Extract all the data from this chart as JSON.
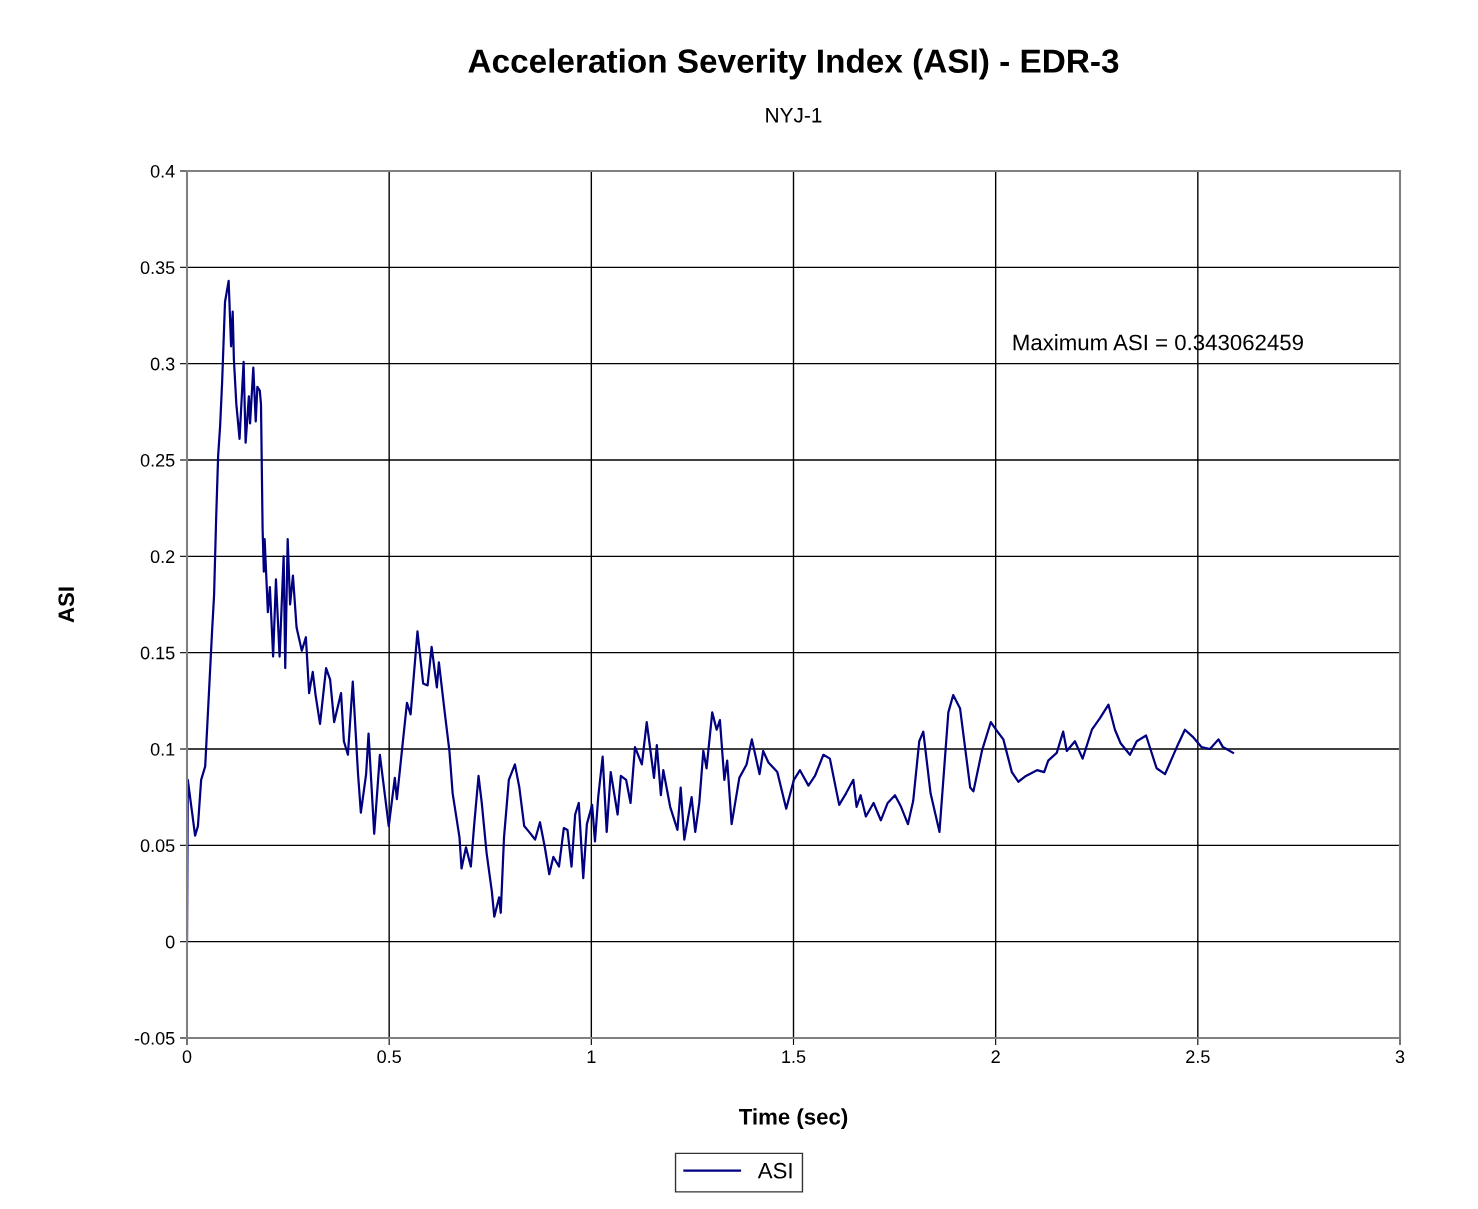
{
  "chart_data": {
    "type": "line",
    "title": "Acceleration Severity Index (ASI) - EDR-3",
    "subtitle": "NYJ-1",
    "xlabel": "Time (sec)",
    "ylabel": "ASI",
    "annotations": [
      "Maximum ASI = 0.343062459"
    ],
    "xlim": [
      0,
      3
    ],
    "xticks": [
      0,
      0.5,
      1,
      1.5,
      2,
      2.5,
      3
    ],
    "ylim": [
      -0.05,
      0.4
    ],
    "yticks": [
      -0.05,
      0,
      0.05,
      0.1,
      0.15,
      0.2,
      0.25,
      0.3,
      0.35,
      0.4
    ],
    "grid": true,
    "legend": "bottom",
    "marker": "none",
    "line_style": "solid",
    "series": [
      {
        "name": "ASI",
        "color": "#000080",
        "x": [
          0,
          0.002,
          0.012,
          0.02,
          0.027,
          0.035,
          0.045,
          0.054,
          0.062,
          0.067,
          0.072,
          0.077,
          0.082,
          0.087,
          0.094,
          0.103,
          0.109,
          0.113,
          0.116,
          0.122,
          0.13,
          0.14,
          0.145,
          0.153,
          0.156,
          0.164,
          0.17,
          0.174,
          0.18,
          0.183,
          0.187,
          0.19,
          0.192,
          0.2,
          0.205,
          0.213,
          0.22,
          0.229,
          0.239,
          0.243,
          0.249,
          0.255,
          0.262,
          0.271,
          0.284,
          0.294,
          0.302,
          0.311,
          0.318,
          0.329,
          0.344,
          0.354,
          0.364,
          0.381,
          0.388,
          0.398,
          0.41,
          0.423,
          0.43,
          0.443,
          0.449,
          0.463,
          0.477,
          0.499,
          0.514,
          0.519,
          0.533,
          0.544,
          0.553,
          0.57,
          0.584,
          0.595,
          0.605,
          0.618,
          0.623,
          0.638,
          0.649,
          0.657,
          0.674,
          0.679,
          0.69,
          0.702,
          0.71,
          0.721,
          0.729,
          0.741,
          0.754,
          0.76,
          0.772,
          0.776,
          0.784,
          0.796,
          0.811,
          0.822,
          0.834,
          0.846,
          0.861,
          0.873,
          0.885,
          0.896,
          0.906,
          0.92,
          0.932,
          0.941,
          0.951,
          0.96,
          0.969,
          0.98,
          0.989,
          1.002,
          1.009,
          1.017,
          1.028,
          1.038,
          1.048,
          1.065,
          1.073,
          1.086,
          1.097,
          1.108,
          1.125,
          1.137,
          1.155,
          1.162,
          1.172,
          1.178,
          1.195,
          1.213,
          1.221,
          1.23,
          1.248,
          1.257,
          1.267,
          1.277,
          1.285,
          1.299,
          1.31,
          1.318,
          1.329,
          1.336,
          1.347,
          1.366,
          1.384,
          1.397,
          1.416,
          1.425,
          1.438,
          1.46,
          1.482,
          1.501,
          1.516,
          1.537,
          1.553,
          1.574,
          1.59,
          1.613,
          1.63,
          1.648,
          1.656,
          1.666,
          1.679,
          1.698,
          1.716,
          1.733,
          1.751,
          1.766,
          1.783,
          1.796,
          1.811,
          1.821,
          1.839,
          1.861,
          1.883,
          1.895,
          1.912,
          1.937,
          1.945,
          1.966,
          1.988,
          2.001,
          2.019,
          2.04,
          2.056,
          2.075,
          2.102,
          2.12,
          2.13,
          2.151,
          2.167,
          2.176,
          2.196,
          2.215,
          2.238,
          2.258,
          2.279,
          2.295,
          2.309,
          2.332,
          2.349,
          2.372,
          2.398,
          2.419,
          2.448,
          2.468,
          2.489,
          2.509,
          2.53,
          2.551,
          2.562,
          2.587
        ],
        "values": [
          0,
          0.084,
          0.068,
          0.055,
          0.06,
          0.084,
          0.091,
          0.128,
          0.161,
          0.18,
          0.219,
          0.252,
          0.268,
          0.291,
          0.332,
          0.343,
          0.309,
          0.327,
          0.302,
          0.279,
          0.261,
          0.301,
          0.259,
          0.283,
          0.269,
          0.298,
          0.27,
          0.288,
          0.286,
          0.279,
          0.214,
          0.192,
          0.209,
          0.171,
          0.184,
          0.148,
          0.188,
          0.148,
          0.2,
          0.142,
          0.209,
          0.175,
          0.19,
          0.163,
          0.151,
          0.158,
          0.129,
          0.14,
          0.128,
          0.113,
          0.142,
          0.136,
          0.114,
          0.129,
          0.104,
          0.097,
          0.135,
          0.087,
          0.067,
          0.087,
          0.108,
          0.056,
          0.097,
          0.06,
          0.085,
          0.074,
          0.102,
          0.124,
          0.118,
          0.161,
          0.134,
          0.133,
          0.153,
          0.132,
          0.145,
          0.118,
          0.099,
          0.077,
          0.054,
          0.038,
          0.049,
          0.039,
          0.06,
          0.086,
          0.072,
          0.046,
          0.026,
          0.013,
          0.023,
          0.015,
          0.054,
          0.084,
          0.092,
          0.08,
          0.06,
          0.057,
          0.053,
          0.062,
          0.049,
          0.035,
          0.044,
          0.039,
          0.059,
          0.058,
          0.039,
          0.066,
          0.072,
          0.033,
          0.061,
          0.071,
          0.052,
          0.075,
          0.096,
          0.057,
          0.088,
          0.066,
          0.086,
          0.084,
          0.072,
          0.101,
          0.092,
          0.114,
          0.085,
          0.102,
          0.076,
          0.089,
          0.07,
          0.058,
          0.08,
          0.053,
          0.075,
          0.057,
          0.072,
          0.099,
          0.09,
          0.119,
          0.11,
          0.115,
          0.084,
          0.094,
          0.061,
          0.085,
          0.092,
          0.105,
          0.087,
          0.099,
          0.093,
          0.088,
          0.069,
          0.084,
          0.089,
          0.081,
          0.086,
          0.097,
          0.095,
          0.071,
          0.077,
          0.084,
          0.07,
          0.076,
          0.065,
          0.072,
          0.063,
          0.072,
          0.076,
          0.07,
          0.061,
          0.073,
          0.104,
          0.109,
          0.077,
          0.057,
          0.119,
          0.128,
          0.121,
          0.08,
          0.078,
          0.099,
          0.114,
          0.11,
          0.105,
          0.088,
          0.083,
          0.086,
          0.089,
          0.088,
          0.094,
          0.098,
          0.109,
          0.099,
          0.104,
          0.095,
          0.11,
          0.116,
          0.123,
          0.11,
          0.103,
          0.097,
          0.104,
          0.107,
          0.09,
          0.087,
          0.101,
          0.11,
          0.106,
          0.101,
          0.1,
          0.105,
          0.101,
          0.098
        ]
      }
    ]
  }
}
